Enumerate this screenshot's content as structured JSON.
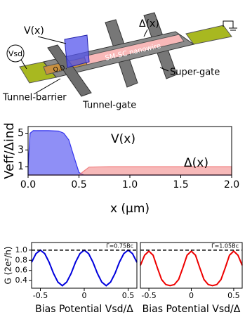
{
  "diagram": {
    "labels": [
      "V(x)",
      "Δ(x)",
      "Vsd",
      "Q.D.",
      "SM-SC nanowire",
      "Tunnel-barrier",
      "Tunnel-gate",
      "Super-gate"
    ]
  },
  "chart_data": [
    {
      "type": "area",
      "xlabel": "x (μm)",
      "ylabel": "Veff/Δind",
      "annotations": [
        "V(x)",
        "Δ(x)"
      ],
      "x": [
        0,
        0.02,
        0.05,
        0.1,
        0.2,
        0.3,
        0.35,
        0.4,
        0.45,
        0.5,
        0.55,
        0.6,
        0.8,
        1.0,
        1.5,
        2.0
      ],
      "series": [
        {
          "color": "#3333ee",
          "values": [
            1.0,
            5.0,
            5.3,
            5.3,
            5.3,
            5.25,
            5.0,
            4.2,
            2.2,
            0.3,
            0,
            0,
            0,
            0,
            0,
            0
          ]
        },
        {
          "color": "#f08080",
          "values": [
            0,
            0,
            0,
            0,
            0,
            0,
            0,
            0,
            0,
            0,
            0.5,
            0.95,
            1.0,
            1.0,
            1.0,
            1.0
          ]
        }
      ],
      "xlim": [
        0,
        2.0
      ],
      "ylim": [
        0,
        5.8
      ],
      "xticks": [
        {
          "value": 0,
          "label": "0.0"
        },
        0.5,
        {
          "value": 1,
          "label": "1.0"
        },
        1.5,
        {
          "value": 2,
          "label": "2.0"
        }
      ],
      "yticks": [
        1,
        3,
        5
      ]
    },
    {
      "type": "line",
      "xlabel": "Bias Potential Vsd/Δ",
      "ylabel": "G (2e²/h)",
      "annotations": [
        "Γ=0.75Bc"
      ],
      "hline": 1.0,
      "x": [
        -0.6,
        -0.55,
        -0.5,
        -0.45,
        -0.4,
        -0.35,
        -0.3,
        -0.25,
        -0.2,
        -0.15,
        -0.1,
        -0.05,
        0,
        0.05,
        0.1,
        0.15,
        0.2,
        0.25,
        0.3,
        0.35,
        0.4,
        0.45,
        0.5,
        0.55,
        0.6
      ],
      "series": [
        {
          "color": "#0000dd",
          "values": [
            0.76,
            0.93,
            1.0,
            0.93,
            0.76,
            0.54,
            0.37,
            0.3,
            0.37,
            0.54,
            0.76,
            0.93,
            1.0,
            0.93,
            0.76,
            0.54,
            0.37,
            0.3,
            0.37,
            0.54,
            0.76,
            0.93,
            1.0,
            0.93,
            0.76
          ]
        }
      ],
      "xlim": [
        -0.6,
        0.6
      ],
      "ylim": [
        0.25,
        1.15
      ],
      "xticks": [
        -0.5,
        0,
        0.5
      ],
      "yticks": [
        0.4,
        0.6,
        0.8,
        {
          "value": 1.0,
          "label": "1.0"
        }
      ]
    },
    {
      "type": "line",
      "xlabel": "Bias Potential Vsd/Δ",
      "annotations": [
        "Γ=1.05Bc"
      ],
      "hline": 1.0,
      "x": [
        -0.6,
        -0.55,
        -0.5,
        -0.45,
        -0.4,
        -0.35,
        -0.3,
        -0.25,
        -0.2,
        -0.15,
        -0.1,
        -0.05,
        0,
        0.05,
        0.1,
        0.15,
        0.2,
        0.25,
        0.3,
        0.35,
        0.4,
        0.45,
        0.5,
        0.55,
        0.6
      ],
      "series": [
        {
          "color": "#ee0000",
          "values": [
            0.7,
            0.9,
            0.98,
            0.9,
            0.65,
            0.42,
            0.32,
            0.3,
            0.32,
            0.42,
            0.65,
            0.9,
            0.98,
            0.9,
            0.65,
            0.42,
            0.32,
            0.3,
            0.32,
            0.42,
            0.65,
            0.9,
            0.98,
            0.9,
            0.7
          ]
        }
      ],
      "xlim": [
        -0.6,
        0.6
      ],
      "ylim": [
        0.25,
        1.15
      ],
      "xticks": [
        -0.5,
        0,
        0.5
      ]
    }
  ]
}
